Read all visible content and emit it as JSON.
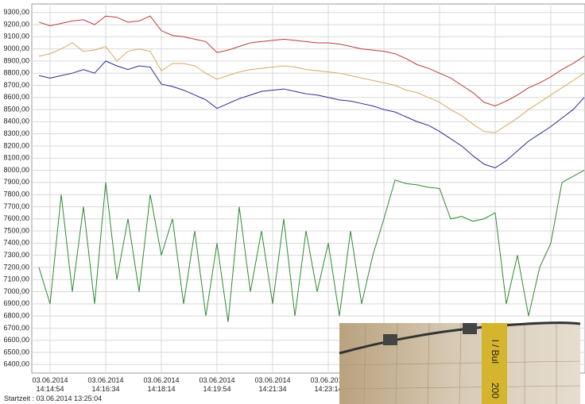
{
  "chart_data": {
    "type": "line",
    "categories": [
      null,
      "03.06.2014\n14:14:54",
      null,
      null,
      null,
      null,
      "03.06.2014\n14:16:34",
      null,
      null,
      null,
      null,
      "03.06.2014\n14:18:14",
      null,
      null,
      null,
      null,
      "03.06.2014\n14:19:54",
      null,
      null,
      null,
      null,
      "03.06.2014\n14:21:34",
      null,
      null,
      null,
      null,
      "03.06.2014\n14:23:14",
      null,
      null,
      null,
      null,
      null,
      null,
      null,
      null,
      null,
      null,
      null,
      null,
      null,
      null,
      null,
      null,
      null,
      null,
      null,
      null,
      null,
      null,
      null
    ],
    "series": [
      {
        "color": "#b83a3a",
        "values": [
          9220,
          9190,
          9210,
          9230,
          9240,
          9200,
          9270,
          9260,
          9220,
          9230,
          9270,
          9150,
          9110,
          9100,
          9080,
          9060,
          8970,
          8990,
          9020,
          9050,
          9060,
          9070,
          9080,
          9070,
          9060,
          9050,
          9050,
          9040,
          9020,
          9000,
          8990,
          8980,
          8960,
          8920,
          8870,
          8840,
          8800,
          8760,
          8700,
          8640,
          8560,
          8530,
          8570,
          8620,
          8680,
          8720,
          8770,
          8830,
          8880,
          8940
        ]
      },
      {
        "color": "#d9a860",
        "values": [
          8940,
          8960,
          9000,
          9050,
          8980,
          8990,
          9020,
          8900,
          8980,
          9000,
          8980,
          8820,
          8880,
          8880,
          8860,
          8800,
          8750,
          8780,
          8810,
          8830,
          8840,
          8850,
          8860,
          8850,
          8830,
          8820,
          8810,
          8800,
          8780,
          8760,
          8740,
          8720,
          8700,
          8660,
          8640,
          8600,
          8560,
          8500,
          8450,
          8380,
          8320,
          8310,
          8370,
          8430,
          8500,
          8560,
          8620,
          8680,
          8740,
          8800
        ]
      },
      {
        "color": "#2a2a8c",
        "values": [
          8780,
          8760,
          8780,
          8800,
          8830,
          8800,
          8900,
          8860,
          8830,
          8860,
          8850,
          8710,
          8690,
          8660,
          8620,
          8580,
          8510,
          8550,
          8590,
          8620,
          8650,
          8660,
          8670,
          8650,
          8630,
          8620,
          8600,
          8580,
          8570,
          8550,
          8530,
          8500,
          8480,
          8440,
          8400,
          8370,
          8320,
          8260,
          8200,
          8120,
          8050,
          8020,
          8080,
          8160,
          8240,
          8300,
          8360,
          8430,
          8500,
          8600
        ]
      },
      {
        "color": "#2e8b2e",
        "values": [
          7200,
          6900,
          7800,
          7000,
          7700,
          6900,
          7900,
          7100,
          7600,
          7000,
          7800,
          7300,
          7600,
          6900,
          7500,
          6800,
          7400,
          6750,
          7700,
          7000,
          7500,
          6900,
          7600,
          6800,
          7500,
          7000,
          7400,
          6800,
          7500,
          6900,
          7300,
          7600,
          7920,
          7890,
          7880,
          7860,
          7850,
          7600,
          7620,
          7580,
          7600,
          7650,
          6900,
          7300,
          6800,
          7200,
          7400,
          7900,
          7950,
          8000
        ]
      }
    ],
    "ylim": [
      6330,
      9370
    ],
    "yticks": [
      {
        "value": 6400,
        "label": "6400,00"
      },
      {
        "value": 6500,
        "label": "6500,00"
      },
      {
        "value": 6600,
        "label": "6600,00"
      },
      {
        "value": 6700,
        "label": "6700,00"
      },
      {
        "value": 6800,
        "label": "6800,00"
      },
      {
        "value": 6900,
        "label": "6900,00"
      },
      {
        "value": 7000,
        "label": "7000,00"
      },
      {
        "value": 7100,
        "label": "7100,00"
      },
      {
        "value": 7200,
        "label": "7200,00"
      },
      {
        "value": 7300,
        "label": "7300,00"
      },
      {
        "value": 7400,
        "label": "7400,00"
      },
      {
        "value": 7500,
        "label": "7500,00"
      },
      {
        "value": 7600,
        "label": "7600,00"
      },
      {
        "value": 7700,
        "label": "7700,00"
      },
      {
        "value": 7800,
        "label": "7800,00"
      },
      {
        "value": 7900,
        "label": "7900,00"
      },
      {
        "value": 8000,
        "label": "8000,00"
      },
      {
        "value": 8100,
        "label": "8100,00"
      },
      {
        "value": 8200,
        "label": "8200,00"
      },
      {
        "value": 8300,
        "label": "8300,00"
      },
      {
        "value": 8400,
        "label": "8400,00"
      },
      {
        "value": 8500,
        "label": "8500,00"
      },
      {
        "value": 8600,
        "label": "8600,00"
      },
      {
        "value": 8700,
        "label": "8700,00"
      },
      {
        "value": 8800,
        "label": "8800,00"
      },
      {
        "value": 8900,
        "label": "8900,00"
      },
      {
        "value": 9000,
        "label": "9000,00"
      },
      {
        "value": 9100,
        "label": "9100,00"
      },
      {
        "value": 9200,
        "label": "9200,00"
      },
      {
        "value": 9300,
        "label": "9300,00"
      }
    ],
    "grid": true,
    "footnote": "Startzeit : 03.06.2014 13:25:04",
    "annotations": [
      "l / Bul",
      "200"
    ]
  }
}
